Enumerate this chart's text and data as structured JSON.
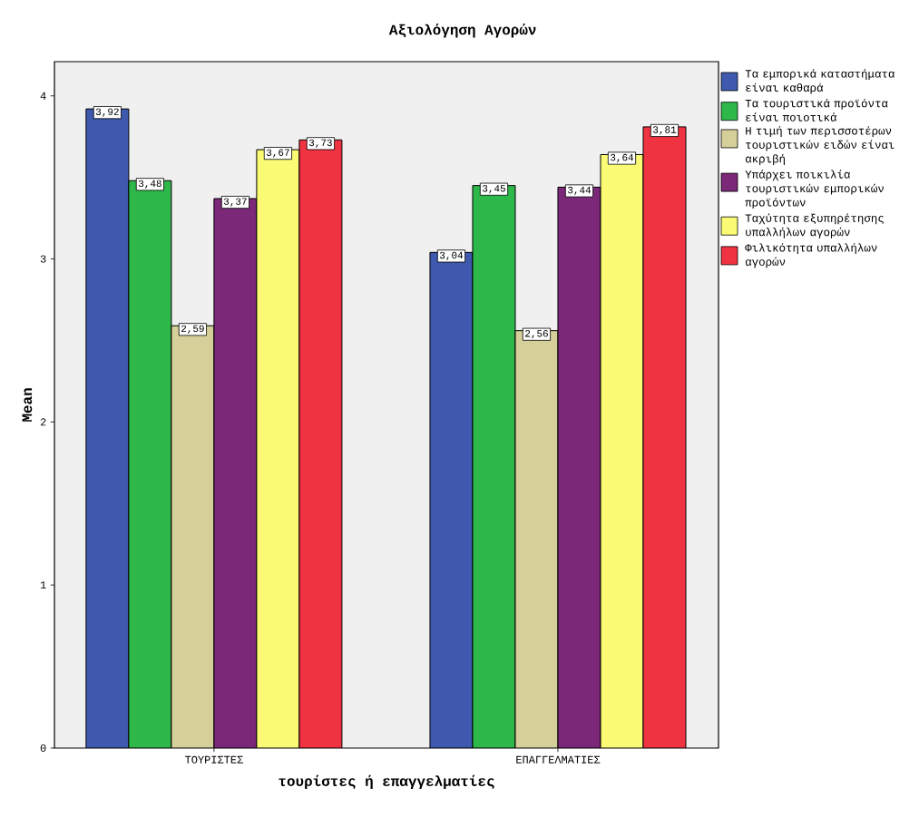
{
  "chart_data": {
    "type": "bar",
    "title": "Αξιολόγηση Αγορών",
    "xlabel": "τουρίστες ή επαγγελματίες",
    "ylabel": "Mean",
    "categories": [
      "ΤΟΥΡΙΣΤΕΣ",
      "ΕΠΑΓΓΕΛΜΑΤΙΕΣ"
    ],
    "series": [
      {
        "name": "Τα εμπορικά καταστήματα είναι καθαρά",
        "color": "#3e59ae",
        "values": [
          3.92,
          3.04
        ],
        "value_labels": [
          "3,92",
          "3,04"
        ]
      },
      {
        "name": "Τα τουριστικά προϊόντα είναι ποιοτικά",
        "color": "#2eb84a",
        "values": [
          3.48,
          3.45
        ],
        "value_labels": [
          "3,48",
          "3,45"
        ]
      },
      {
        "name": "Η τιμή των περισσοτέρων τουριστικών ειδών είναι ακριβή",
        "color": "#d5cf9a",
        "values": [
          2.59,
          2.56
        ],
        "value_labels": [
          "2,59",
          "2,56"
        ]
      },
      {
        "name": "Υπάρχει ποικιλία τουριστικών εμπορικών προϊόντων",
        "color": "#7b2878",
        "values": [
          3.37,
          3.44
        ],
        "value_labels": [
          "3,37",
          "3,44"
        ]
      },
      {
        "name": "Ταχύτητα εξυπηρέτησης υπαλλήλων αγορών",
        "color": "#fafa74",
        "values": [
          3.67,
          3.64
        ],
        "value_labels": [
          "3,67",
          "3,64"
        ]
      },
      {
        "name": "Φιλικότητα υπαλλήλων αγορών",
        "color": "#ef3340",
        "values": [
          3.73,
          3.81
        ],
        "value_labels": [
          "3,73",
          "3,81"
        ]
      }
    ],
    "ylim": [
      0,
      4.21
    ],
    "yticks": [
      0,
      1,
      2,
      3,
      4
    ],
    "grid": false,
    "legend": "right"
  }
}
